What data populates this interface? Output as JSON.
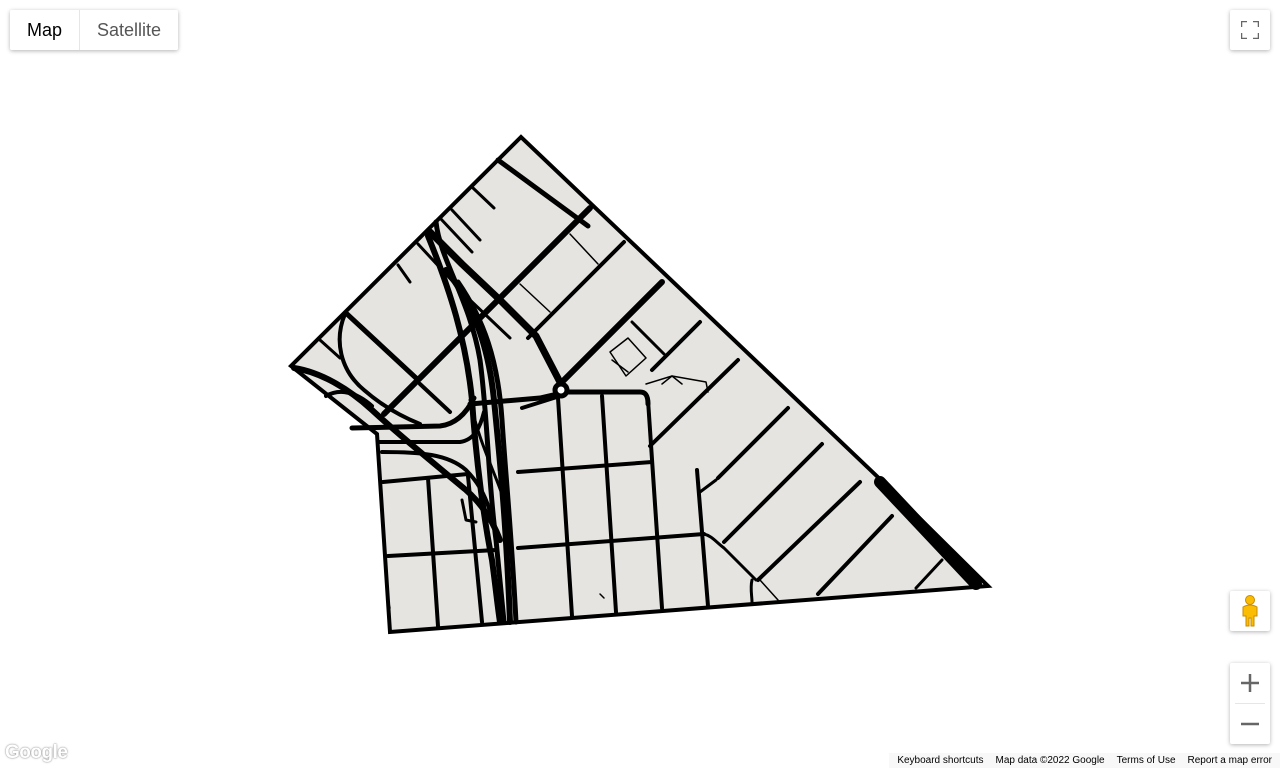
{
  "map_type_control": {
    "map_label": "Map",
    "satellite_label": "Satellite",
    "selected": "Map"
  },
  "controls": {
    "fullscreen_icon": "fullscreen-icon",
    "pegman_icon": "street-view-pegman-icon",
    "zoom_in_icon": "plus-icon",
    "zoom_out_icon": "minus-icon"
  },
  "logo": {
    "text": "Google"
  },
  "attribution": {
    "keyboard_shortcuts": "Keyboard shortcuts",
    "map_data": "Map data ©2022 Google",
    "terms": "Terms of Use",
    "report": "Report a map error"
  },
  "colors": {
    "region_fill": "#e5e4e1",
    "road_stroke": "#000000",
    "background": "#ffffff",
    "pegman": "#fbbc04"
  }
}
